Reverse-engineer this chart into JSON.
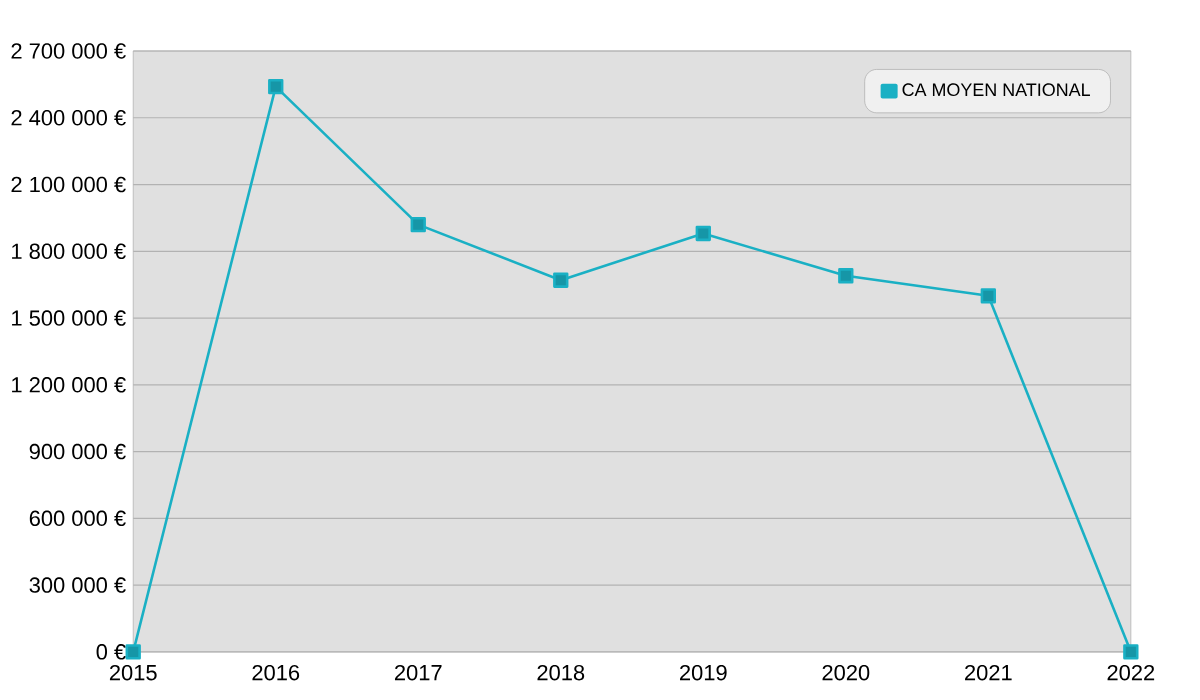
{
  "chart_data": {
    "type": "line",
    "x": [
      2015,
      2016,
      2017,
      2018,
      2019,
      2020,
      2021,
      2022
    ],
    "series": [
      {
        "name": "CA MOYEN NATIONAL",
        "color": "#1ab0c4",
        "values": [
          0,
          2540000,
          1920000,
          1670000,
          1880000,
          1690000,
          1600000,
          0
        ]
      }
    ],
    "xlim": [
      2015,
      2022
    ],
    "xticks": [
      2015,
      2016,
      2017,
      2018,
      2019,
      2020,
      2021,
      2022
    ],
    "ylim": [
      0,
      2700000
    ],
    "yticks": [
      {
        "value": 0,
        "label": "0 €"
      },
      {
        "value": 300000,
        "label": "300 000 €"
      },
      {
        "value": 600000,
        "label": "600 000 €"
      },
      {
        "value": 900000,
        "label": "900 000 €"
      },
      {
        "value": 1200000,
        "label": "1 200 000 €"
      },
      {
        "value": 1500000,
        "label": "1 500 000 €"
      },
      {
        "value": 1800000,
        "label": "1 800 000 €"
      },
      {
        "value": 2100000,
        "label": "2 100 000 €"
      },
      {
        "value": 2400000,
        "label": "2 400 000 €"
      },
      {
        "value": 2700000,
        "label": "2 700 000 €"
      }
    ],
    "grid": "y",
    "legend": "top right",
    "marker": "square",
    "line_style": "solid"
  }
}
